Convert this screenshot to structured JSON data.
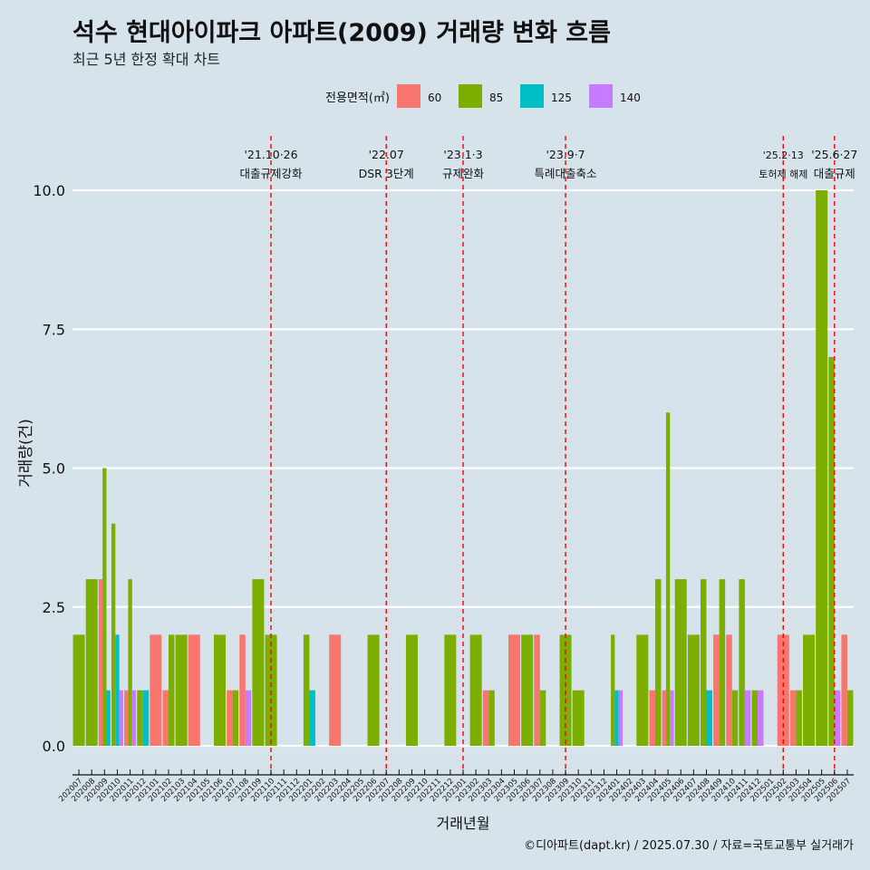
{
  "title": "석수 현대아이파크 아파트(2009) 거래량 변화 흐름",
  "subtitle": "최근 5년 한정 확대 차트",
  "caption": "©디아파트(dapt.kr) / 2025.07.30 / 자료=국토교통부 실거래가",
  "colors": {
    "60": "#f8766d",
    "85": "#7cae00",
    "125": "#00bfc4",
    "140": "#c77cff"
  },
  "chart_data": {
    "type": "bar",
    "xlabel": "거래년월",
    "ylabel": "거래량(건)",
    "ylim": [
      0,
      10
    ],
    "yticks": [
      "0.0",
      "2.5",
      "5.0",
      "7.5",
      "10.0"
    ],
    "legend": {
      "title": "전용면적(㎡)",
      "placement": "top",
      "entries": [
        "60",
        "85",
        "125",
        "140"
      ]
    },
    "categories": [
      "202007",
      "202008",
      "202009",
      "202010",
      "202011",
      "202012",
      "202101",
      "202102",
      "202103",
      "202104",
      "202105",
      "202106",
      "202107",
      "202108",
      "202109",
      "202110",
      "202111",
      "202112",
      "202201",
      "202202",
      "202203",
      "202204",
      "202205",
      "202206",
      "202207",
      "202208",
      "202209",
      "202210",
      "202211",
      "202212",
      "202301",
      "202302",
      "202303",
      "202304",
      "202305",
      "202306",
      "202307",
      "202308",
      "202309",
      "202310",
      "202311",
      "202312",
      "202401",
      "202402",
      "202403",
      "202404",
      "202405",
      "202406",
      "202407",
      "202408",
      "202409",
      "202410",
      "202411",
      "202412",
      "202501",
      "202502",
      "202503",
      "202504",
      "202505",
      "202506",
      "202507"
    ],
    "series": [
      {
        "name": "60",
        "values": [
          0,
          0,
          3,
          0,
          1,
          0,
          2,
          1,
          0,
          2,
          0,
          0,
          1,
          2,
          0,
          0,
          0,
          0,
          0,
          0,
          2,
          0,
          0,
          0,
          0,
          0,
          0,
          0,
          0,
          0,
          0,
          0,
          1,
          0,
          2,
          0,
          2,
          0,
          0,
          0,
          0,
          0,
          0,
          0,
          0,
          1,
          1,
          0,
          0,
          0,
          2,
          2,
          0,
          0,
          0,
          2,
          1,
          0,
          0,
          0,
          2
        ]
      },
      {
        "name": "85",
        "values": [
          2,
          3,
          5,
          4,
          3,
          1,
          0,
          2,
          2,
          0,
          0,
          2,
          1,
          0,
          3,
          2,
          0,
          0,
          2,
          0,
          0,
          0,
          0,
          2,
          0,
          0,
          2,
          0,
          0,
          2,
          0,
          2,
          1,
          0,
          0,
          2,
          1,
          0,
          2,
          1,
          0,
          0,
          2,
          0,
          2,
          3,
          6,
          3,
          2,
          3,
          3,
          1,
          3,
          1,
          0,
          0,
          1,
          2,
          10,
          7,
          1
        ]
      },
      {
        "name": "125",
        "values": [
          0,
          0,
          1,
          2,
          0,
          1,
          0,
          0,
          0,
          0,
          0,
          0,
          0,
          0,
          0,
          0,
          0,
          0,
          1,
          0,
          0,
          0,
          0,
          0,
          0,
          0,
          0,
          0,
          0,
          0,
          0,
          0,
          0,
          0,
          0,
          0,
          0,
          0,
          0,
          0,
          0,
          0,
          1,
          0,
          0,
          0,
          0,
          0,
          0,
          1,
          0,
          0,
          0,
          0,
          0,
          0,
          0,
          0,
          0,
          0,
          0
        ]
      },
      {
        "name": "140",
        "values": [
          0,
          0,
          0,
          1,
          1,
          0,
          0,
          0,
          0,
          0,
          0,
          0,
          0,
          1,
          0,
          0,
          0,
          0,
          0,
          0,
          0,
          0,
          0,
          0,
          0,
          0,
          0,
          0,
          0,
          0,
          0,
          0,
          0,
          0,
          0,
          0,
          0,
          0,
          0,
          0,
          0,
          0,
          1,
          0,
          0,
          0,
          1,
          0,
          0,
          0,
          0,
          0,
          1,
          1,
          0,
          0,
          0,
          0,
          0,
          1,
          0
        ]
      }
    ],
    "annotations": [
      {
        "at": "202110",
        "date": "'21.10·26",
        "label": "대출규제강화"
      },
      {
        "at": "202207",
        "date": "'22.07",
        "label": "DSR 3단계"
      },
      {
        "at": "202301",
        "date": "'23.1·3",
        "label": "규제완화"
      },
      {
        "at": "202309",
        "date": "'23.9·7",
        "label": "특례대출축소"
      },
      {
        "at": "202502",
        "date": "'25.2·13",
        "label": "토허제 해제"
      },
      {
        "at": "202506",
        "date": "'25.6·27",
        "label": "대출규제"
      }
    ]
  }
}
